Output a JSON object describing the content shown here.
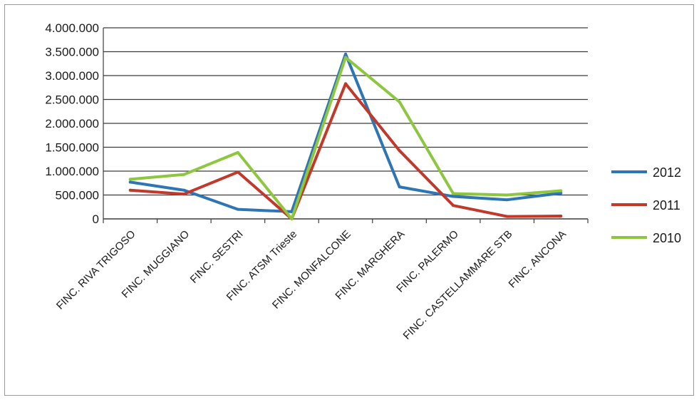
{
  "chart_data": {
    "type": "line",
    "title": "",
    "xlabel": "",
    "ylabel": "",
    "ylim": [
      0,
      4000000
    ],
    "ytick_values": [
      0,
      500000,
      1000000,
      1500000,
      2000000,
      2500000,
      3000000,
      3500000,
      4000000
    ],
    "ytick_labels": [
      "0",
      "500.000",
      "1.000.000",
      "1.500.000",
      "2.000.000",
      "2.500.000",
      "3.000.000",
      "3.500.000",
      "4.000.000"
    ],
    "grid": "horizontal",
    "legend_position": "right",
    "categories": [
      "FINC. RIVA TRIGOSO",
      "FINC. MUGGIANO",
      "FINC. SESTRI",
      "FINC. ATSM Trieste",
      "FINC. MONFALCONE",
      "FINC. MARGHERA",
      "FINC. PALERMO",
      "FINC. CASTELLAMMARE STB",
      "FINC. ANCONA"
    ],
    "series": [
      {
        "name": "2012",
        "color": "#2e75b6",
        "values": [
          770000,
          600000,
          200000,
          150000,
          3450000,
          670000,
          470000,
          400000,
          540000
        ]
      },
      {
        "name": "2011",
        "color": "#c0392b",
        "values": [
          600000,
          520000,
          980000,
          0,
          2830000,
          1430000,
          280000,
          50000,
          60000
        ]
      },
      {
        "name": "2010",
        "color": "#8dc63f",
        "values": [
          830000,
          930000,
          1390000,
          0,
          3380000,
          2450000,
          530000,
          500000,
          590000
        ]
      }
    ]
  }
}
